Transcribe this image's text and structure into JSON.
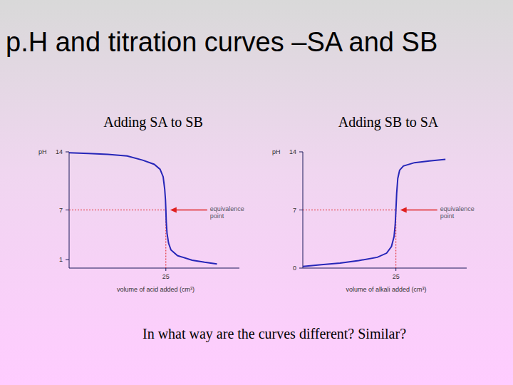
{
  "slide": {
    "title": "p.H and titration curves –SA and SB",
    "question": "In what way are the curves different? Similar?"
  },
  "chart_data": [
    {
      "type": "line",
      "title": "Adding SA to SB",
      "y_label": "pH",
      "x_label": "volume of acid added (cm³)",
      "xlim": [
        0,
        44
      ],
      "ylim": [
        0,
        14
      ],
      "xticks": [
        25
      ],
      "yticks": [
        1,
        7,
        14
      ],
      "color": "#2626b8",
      "x": [
        0,
        5,
        10,
        15,
        19,
        22,
        23.5,
        24.3,
        24.7,
        24.9,
        25,
        25.1,
        25.3,
        25.7,
        26.3,
        28,
        31.8,
        35,
        38.2
      ],
      "values": [
        13.9,
        13.8,
        13.7,
        13.5,
        13.0,
        12.5,
        11.9,
        11.0,
        9.5,
        8.2,
        7.0,
        5.6,
        4.2,
        3.0,
        2.2,
        1.5,
        0.95,
        0.7,
        0.5
      ],
      "annotation": {
        "text": "equivalence point",
        "x": 25,
        "y": 7
      }
    },
    {
      "type": "line",
      "title": "Adding SB to SA",
      "y_label": "pH",
      "x_label": "volume of alkali added (cm³)",
      "xlim": [
        0,
        44
      ],
      "ylim": [
        0,
        14
      ],
      "xticks": [
        25
      ],
      "yticks": [
        0,
        7,
        14
      ],
      "color": "#2626b8",
      "x": [
        0,
        5,
        10,
        15,
        20,
        22.5,
        23.8,
        24.5,
        24.8,
        25,
        25.2,
        25.5,
        26,
        27,
        30,
        34,
        38.3
      ],
      "values": [
        0.2,
        0.4,
        0.6,
        0.9,
        1.3,
        1.8,
        2.6,
        3.8,
        5.2,
        7.0,
        9.0,
        10.8,
        11.8,
        12.3,
        12.7,
        12.9,
        13.1
      ],
      "annotation": {
        "text": "equivalence point",
        "x": 25,
        "y": 7
      }
    }
  ]
}
